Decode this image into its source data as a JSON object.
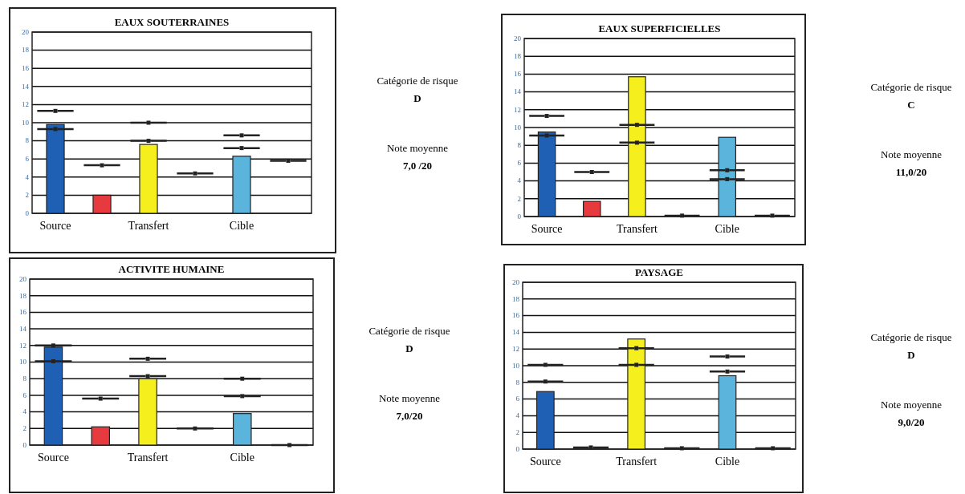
{
  "chart_data": [
    {
      "type": "bar",
      "title": "EAUX SOUTERRAINES",
      "categories": [
        "Source",
        null,
        "Transfert",
        null,
        "Cible",
        null
      ],
      "ylim": [
        0,
        20
      ],
      "yticks": [
        0,
        2,
        4,
        6,
        8,
        10,
        12,
        14,
        16,
        18,
        20
      ],
      "grid": "y",
      "marker": "square",
      "annotations": [
        "Catégorie de risque",
        "D",
        "Note moyenne",
        "7,0 /20"
      ],
      "series": [
        {
          "colors": [
            "#1f5fb4",
            "#e63a3f",
            "#f5ef1e",
            "#e63a3f",
            "#5ab4dc",
            "#e63a3f"
          ],
          "values": [
            9.8,
            2.0,
            7.6,
            null,
            6.3,
            null
          ]
        },
        {
          "type": "scatter",
          "color": "#222222",
          "values": [
            11.3,
            null,
            10.0,
            null,
            8.6,
            null
          ]
        },
        {
          "type": "scatter",
          "color": "#222222",
          "values": [
            9.3,
            5.3,
            8.0,
            4.4,
            7.2,
            5.8
          ]
        }
      ]
    },
    {
      "type": "bar",
      "title": "EAUX SUPERFICIELLES",
      "categories": [
        "Source",
        null,
        "Transfert",
        null,
        "Cible",
        null
      ],
      "ylim": [
        0,
        20
      ],
      "yticks": [
        0,
        2,
        4,
        6,
        8,
        10,
        12,
        14,
        16,
        18,
        20
      ],
      "grid": "y",
      "marker": "square",
      "annotations": [
        "Catégorie de risque",
        "C",
        "Note moyenne",
        "11,0/20"
      ],
      "series": [
        {
          "colors": [
            "#1f5fb4",
            "#e63a3f",
            "#f5ef1e",
            "#e63a3f",
            "#5ab4dc",
            "#e63a3f"
          ],
          "values": [
            9.5,
            1.7,
            15.7,
            null,
            8.9,
            null
          ]
        },
        {
          "type": "scatter",
          "color": "#222222",
          "values": [
            11.3,
            null,
            10.3,
            null,
            5.2,
            null
          ]
        },
        {
          "type": "scatter",
          "color": "#222222",
          "values": [
            9.1,
            5.0,
            8.3,
            0.1,
            4.2,
            0.1
          ]
        }
      ]
    },
    {
      "type": "bar",
      "title": "ACTIVITE HUMAINE",
      "categories": [
        "Source",
        null,
        "Transfert",
        null,
        "Cible",
        null
      ],
      "ylim": [
        0,
        20
      ],
      "yticks": [
        0,
        2,
        4,
        6,
        8,
        10,
        12,
        14,
        16,
        18,
        20
      ],
      "grid": "y",
      "marker": "square",
      "annotations": [
        "Catégorie de risque",
        "D",
        "Note moyenne",
        "7,0/20"
      ],
      "series": [
        {
          "colors": [
            "#1f5fb4",
            "#e63a3f",
            "#f5ef1e",
            "#e63a3f",
            "#5ab4dc",
            "#e63a3f"
          ],
          "values": [
            11.8,
            2.2,
            8.0,
            null,
            3.8,
            null
          ]
        },
        {
          "type": "scatter",
          "color": "#222222",
          "values": [
            12.0,
            null,
            10.4,
            null,
            8.0,
            null
          ]
        },
        {
          "type": "scatter",
          "color": "#222222",
          "values": [
            10.1,
            5.6,
            8.3,
            2.0,
            5.9,
            0.0
          ]
        }
      ]
    },
    {
      "type": "bar",
      "title": "PAYSAGE",
      "categories": [
        "Source",
        null,
        "Transfert",
        null,
        "Cible",
        null
      ],
      "ylim": [
        0,
        20
      ],
      "yticks": [
        0,
        2,
        4,
        6,
        8,
        10,
        12,
        14,
        16,
        18,
        20
      ],
      "grid": "y",
      "marker": "square",
      "annotations": [
        "Catégorie de risque",
        "D",
        "Note moyenne",
        "9,0/20"
      ],
      "series": [
        {
          "colors": [
            "#1f5fb4",
            "#e63a3f",
            "#f5ef1e",
            "#e63a3f",
            "#5ab4dc",
            "#e63a3f"
          ],
          "values": [
            6.9,
            null,
            13.2,
            null,
            8.8,
            null
          ]
        },
        {
          "type": "scatter",
          "color": "#222222",
          "values": [
            10.1,
            null,
            12.1,
            null,
            11.1,
            null
          ]
        },
        {
          "type": "scatter",
          "color": "#222222",
          "values": [
            8.1,
            0.2,
            10.1,
            0.1,
            9.3,
            0.1
          ]
        }
      ]
    }
  ]
}
